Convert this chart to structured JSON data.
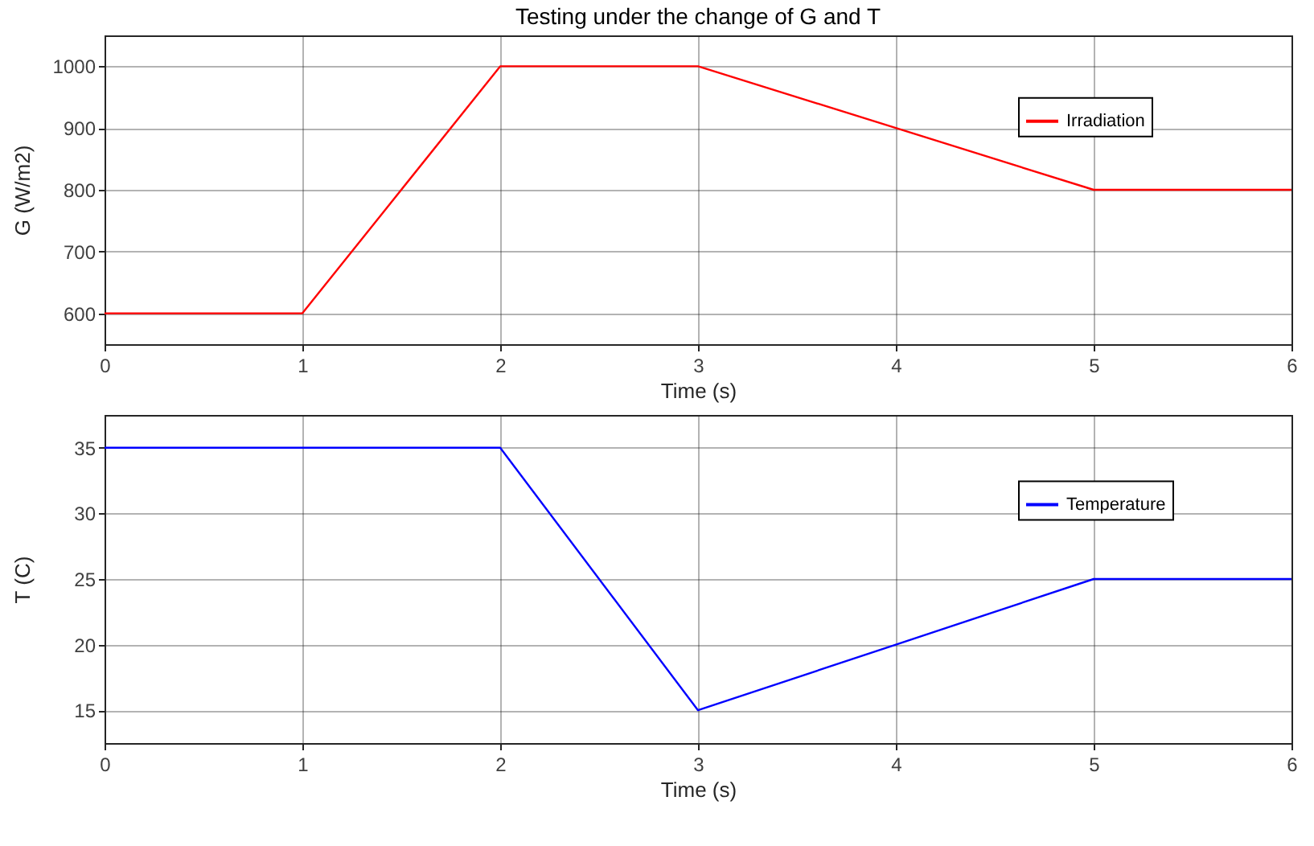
{
  "chart_data": [
    {
      "type": "line",
      "title": "Testing under the change of G and T",
      "xlabel": "Time (s)",
      "ylabel": "G (W/m2)",
      "x": [
        0,
        1,
        2,
        3,
        4,
        5,
        6
      ],
      "series": [
        {
          "name": "Irradiation",
          "color": "#ff0000",
          "values": [
            600,
            600,
            1000,
            1000,
            900,
            800,
            800
          ]
        }
      ],
      "xlim": [
        0,
        6
      ],
      "xticks": [
        0,
        1,
        2,
        3,
        4,
        5,
        6
      ],
      "ylim": [
        550,
        1050
      ],
      "yticks": [
        600,
        700,
        800,
        900,
        1000
      ],
      "grid": true,
      "legend": "right"
    },
    {
      "type": "line",
      "xlabel": "Time (s)",
      "ylabel": "T (C)",
      "x": [
        0,
        1,
        2,
        3,
        4,
        5,
        6
      ],
      "series": [
        {
          "name": "Temperature",
          "color": "#0000ff",
          "values": [
            35,
            35,
            35,
            15,
            20,
            25,
            25
          ]
        }
      ],
      "xlim": [
        0,
        6
      ],
      "xticks": [
        0,
        1,
        2,
        3,
        4,
        5,
        6
      ],
      "ylim": [
        12.5,
        37.5
      ],
      "yticks": [
        15,
        20,
        25,
        30,
        35
      ],
      "grid": true,
      "legend": "right"
    }
  ]
}
